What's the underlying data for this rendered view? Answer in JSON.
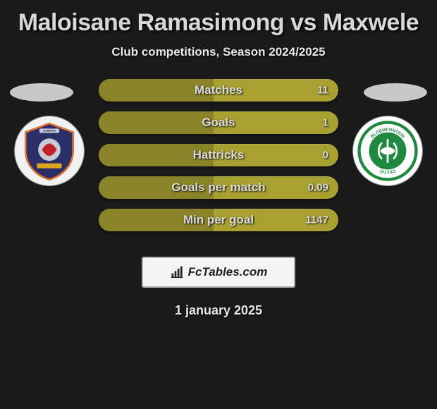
{
  "header": {
    "title": "Maloisane Ramasimong vs Maxwele",
    "subtitle": "Club competitions, Season 2024/2025"
  },
  "teams": {
    "left": {
      "name": "Chippa United FC",
      "badge_bg": "#f2f2f2",
      "badge_primary": "#2a2f6a",
      "badge_secondary": "#c02028",
      "badge_accent": "#e0a020"
    },
    "right": {
      "name": "Bloemfontein Celtic",
      "badge_bg": "#ffffff",
      "badge_primary": "#1f8a3f",
      "badge_secondary": "#ffffff"
    }
  },
  "stats": {
    "bar_color": "#a8a030",
    "bar_fill_color": "#8a8428",
    "rows": [
      {
        "label": "Matches",
        "value": "11",
        "fill_pct": 48
      },
      {
        "label": "Goals",
        "value": "1",
        "fill_pct": 48
      },
      {
        "label": "Hattricks",
        "value": "0",
        "fill_pct": 48
      },
      {
        "label": "Goals per match",
        "value": "0.09",
        "fill_pct": 48
      },
      {
        "label": "Min per goal",
        "value": "1147",
        "fill_pct": 48
      }
    ]
  },
  "brand": {
    "label": "FcTables.com",
    "icon_name": "bar-chart-icon"
  },
  "date": "1 january 2025",
  "style": {
    "background_color": "#1a1a1a",
    "title_color": "#d8d8d8",
    "text_color": "#e8e8e8",
    "title_fontsize": 34,
    "subtitle_fontsize": 17,
    "label_fontsize": 17,
    "value_fontsize": 15,
    "date_fontsize": 18,
    "avatar_color": "#c8c8c8",
    "brand_border": "#b0b0b0",
    "brand_bg": "#f4f4f4",
    "brand_text_color": "#222222"
  }
}
